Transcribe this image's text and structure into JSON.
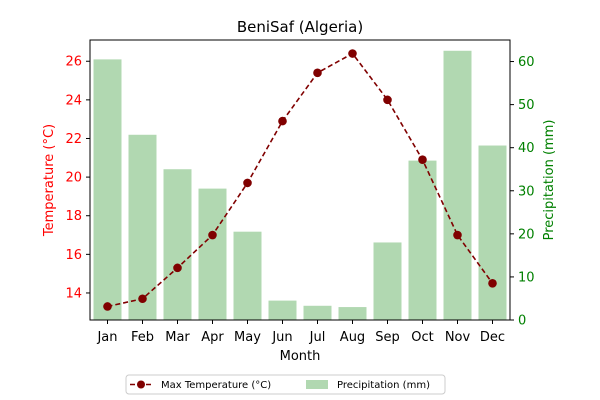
{
  "chart_data": {
    "type": "bar+line",
    "title": "BeniSaf (Algeria)",
    "xlabel": "Month",
    "categories": [
      "Jan",
      "Feb",
      "Mar",
      "Apr",
      "May",
      "Jun",
      "Jul",
      "Aug",
      "Sep",
      "Oct",
      "Nov",
      "Dec"
    ],
    "left_axis": {
      "label": "Temperature (°C)",
      "range": [
        12.6,
        27.1
      ],
      "ticks": [
        14,
        16,
        18,
        20,
        22,
        24,
        26
      ],
      "color": "#ff0000"
    },
    "right_axis": {
      "label": "Precipitation (mm)",
      "range": [
        0,
        65
      ],
      "ticks": [
        0,
        10,
        20,
        30,
        40,
        50,
        60
      ],
      "color": "#008000"
    },
    "series": [
      {
        "name": "Max Temperature (°C)",
        "type": "line",
        "axis": "left",
        "color": "#800000",
        "style": "dashed-with-markers",
        "values": [
          13.3,
          13.7,
          15.3,
          17.0,
          19.7,
          22.9,
          25.4,
          26.4,
          24.0,
          20.9,
          17.0,
          14.5
        ]
      },
      {
        "name": "Precipitation (mm)",
        "type": "bar",
        "axis": "right",
        "color": "#b1d8b1",
        "values": [
          60.5,
          43,
          35,
          30.5,
          20.5,
          4.5,
          3.3,
          3,
          18,
          37,
          62.5,
          40.5
        ]
      }
    ],
    "legend": {
      "position": "bottom-center",
      "entries": [
        "Max Temperature (°C)",
        "Precipitation (mm)"
      ]
    }
  }
}
